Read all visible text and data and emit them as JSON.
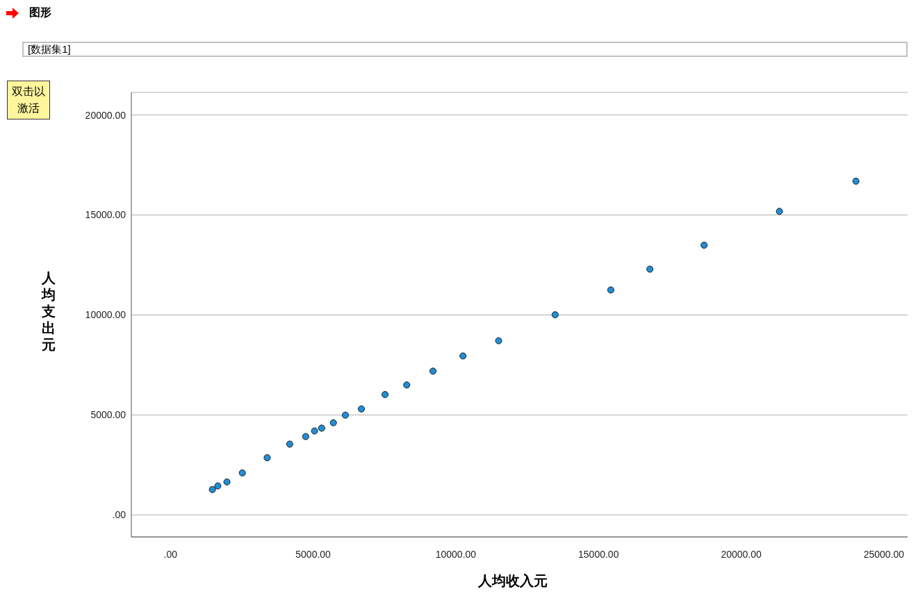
{
  "chart_data": {
    "type": "scatter",
    "title": "图形",
    "subtitle": "[数据集1]",
    "annotations": [
      "双击以激活"
    ],
    "xlabel": "人均收入元",
    "ylabel": "人均支出元",
    "x": [
      1470,
      1660,
      1980,
      2520,
      3390,
      4180,
      4740,
      5050,
      5300,
      5710,
      6130,
      6690,
      7520,
      8280,
      9200,
      10250,
      11500,
      13480,
      15430,
      16800,
      18700,
      21340,
      24020
    ],
    "series": [
      {
        "color": "#1f8fd8",
        "values": [
          1270,
          1450,
          1650,
          2100,
          2860,
          3540,
          3920,
          4200,
          4340,
          4610,
          4990,
          5300,
          6020,
          6500,
          7190,
          7950,
          8710,
          10010,
          11250,
          12290,
          13490,
          15180,
          16690
        ]
      }
    ],
    "xlim": [
      -1370,
      25830
    ],
    "ylim": [
      -1100,
      21130
    ],
    "xticks": [
      {
        "value": 0,
        "label": ".00"
      },
      {
        "value": 5000,
        "label": "5000.00"
      },
      {
        "value": 10000,
        "label": "10000.00"
      },
      {
        "value": 15000,
        "label": "15000.00"
      },
      {
        "value": 20000,
        "label": "20000.00"
      },
      {
        "value": 25000,
        "label": "25000.00"
      }
    ],
    "yticks": [
      {
        "value": 0,
        "label": ".00"
      },
      {
        "value": 5000,
        "label": "5000.00"
      },
      {
        "value": 10000,
        "label": "10000.00"
      },
      {
        "value": 15000,
        "label": "15000.00"
      },
      {
        "value": 20000,
        "label": "20000.00"
      }
    ],
    "grid": "y",
    "marker": "circle",
    "legend": false
  }
}
